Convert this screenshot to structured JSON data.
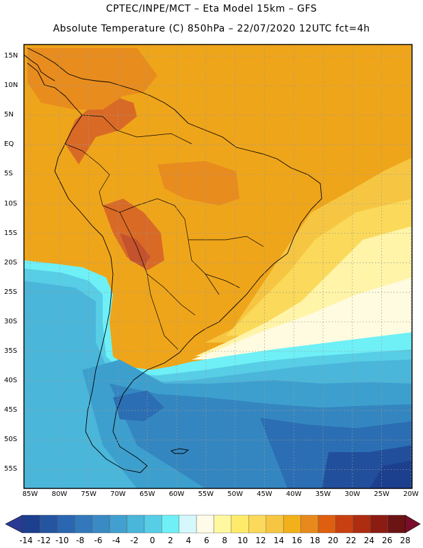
{
  "header": {
    "line1": "CPTEC/INPE/MCT –  Eta Model 15km – GFS",
    "line2": "Absolute Temperature (C) 850hPa – 22/07/2020 12UTC fct=4h"
  },
  "axes": {
    "lat_labels": [
      "15N",
      "10N",
      "5N",
      "EQ",
      "5S",
      "10S",
      "15S",
      "20S",
      "25S",
      "30S",
      "35S",
      "40S",
      "45S",
      "50S",
      "55S"
    ],
    "lon_labels": [
      "85W",
      "80W",
      "75W",
      "70W",
      "65W",
      "60W",
      "55W",
      "50W",
      "45W",
      "40W",
      "35W",
      "30W",
      "25W",
      "20W"
    ]
  },
  "colorbar": {
    "labels": [
      "-14",
      "-12",
      "-10",
      "-8",
      "-6",
      "-4",
      "-2",
      "0",
      "2",
      "4",
      "6",
      "8",
      "10",
      "12",
      "14",
      "16",
      "18",
      "20",
      "22",
      "24",
      "26",
      "28"
    ],
    "colors": [
      "#1c3f8e",
      "#2554a0",
      "#2b66b0",
      "#3278bb",
      "#3a8ac3",
      "#41a0cf",
      "#4ab6da",
      "#58cde6",
      "#6ef0f6",
      "#d4f8fb",
      "#fffbe8",
      "#fff8a0",
      "#ffeb6a",
      "#fbd95a",
      "#f6c643",
      "#f2b01b",
      "#e88a1b",
      "#de5f10",
      "#c84010",
      "#ae2c10",
      "#8c1c12",
      "#6c1414"
    ],
    "low_arrow": "#283a94",
    "high_arrow": "#7a0e2a"
  },
  "map_colors": {
    "warm20": "#efa51a",
    "warm22": "#e88c1e",
    "hot24": "#d96a26",
    "hot26": "#c4522c",
    "yellow16": "#f6c643",
    "yellow14": "#fbd95a",
    "pale10": "#fff4a8",
    "cream": "#fffbe0",
    "cyan4": "#6ef0f6",
    "cyan2": "#58cde6",
    "blue0": "#4ab6da",
    "blue_m2": "#3d9fcd",
    "blue_m4": "#3486c0",
    "blue_m6": "#2b6eb3",
    "blue_m8": "#224f9c",
    "blue_m10": "#1c3f8e"
  }
}
